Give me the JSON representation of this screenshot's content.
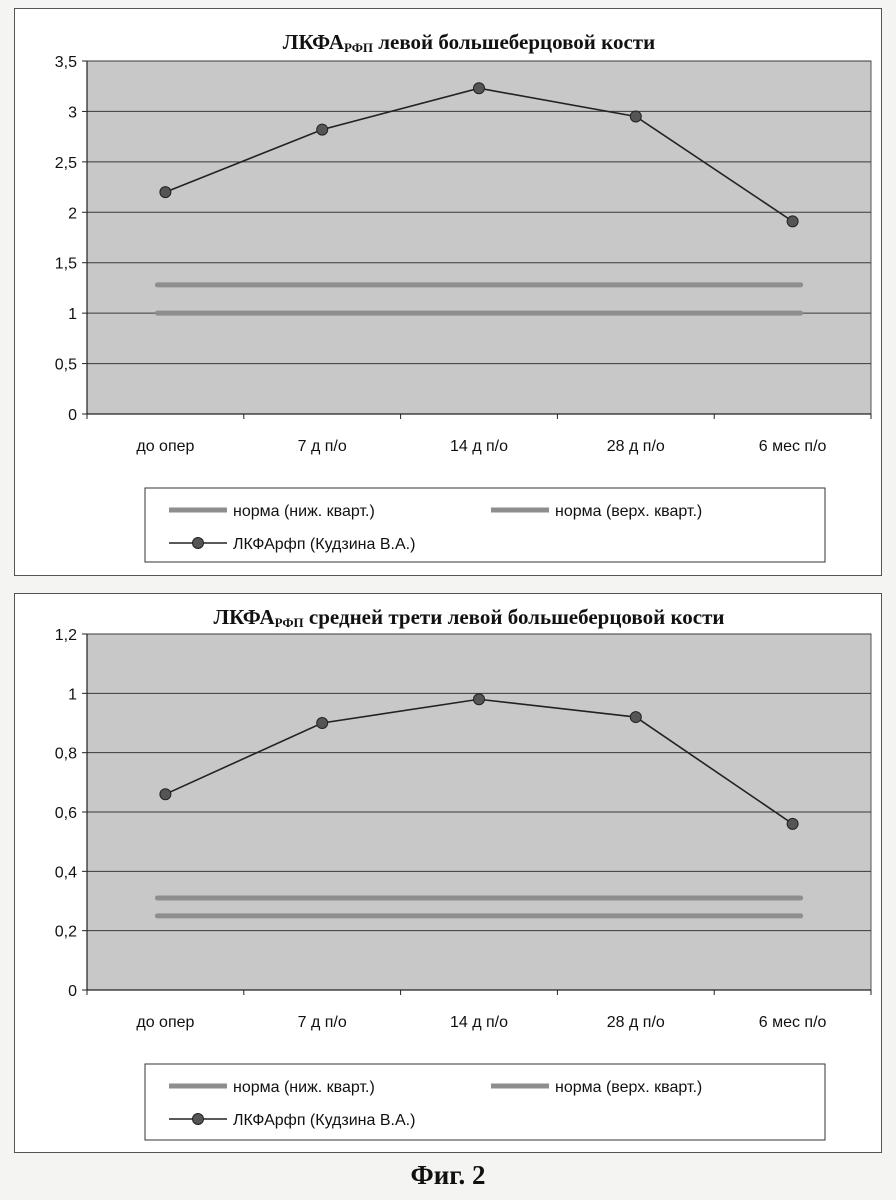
{
  "colors": {
    "plot_bg": "#c8c8c8",
    "gridline": "#3a3a3a",
    "norm_lines": "#8e8e8e",
    "series_line": "#222222",
    "marker": "#555555"
  },
  "figure_caption": "Фиг. 2",
  "chart_data": [
    {
      "type": "line",
      "title": "ЛКФА",
      "title_subscript": "РФП",
      "title_rest": "левой большеберцовой кости",
      "categories": [
        "до опер",
        "7 д п/о",
        "14 д п/о",
        "28 д п/о",
        "6 мес п/о"
      ],
      "ylim": [
        0,
        3.5
      ],
      "yticks": [
        "0",
        "0,5",
        "1",
        "1,5",
        "2",
        "2,5",
        "3",
        "3,5"
      ],
      "grid": true,
      "legend_position": "bottom",
      "series": [
        {
          "name": "норма (ниж. кварт.)",
          "style": "band",
          "values": [
            1.0,
            1.0,
            1.0,
            1.0,
            1.0
          ]
        },
        {
          "name": "норма (верх. кварт.)",
          "style": "band",
          "values": [
            1.28,
            1.28,
            1.28,
            1.28,
            1.28
          ]
        },
        {
          "name": "ЛКФАрфп (Кудзина В.А.)",
          "style": "line-marker",
          "values": [
            2.2,
            2.82,
            3.23,
            2.95,
            1.91
          ]
        }
      ]
    },
    {
      "type": "line",
      "title": "ЛКФА",
      "title_subscript": "РФП",
      "title_rest": "средней трети левой большеберцовой кости",
      "categories": [
        "до опер",
        "7 д п/о",
        "14 д п/о",
        "28 д п/о",
        "6 мес п/о"
      ],
      "ylim": [
        0,
        1.2
      ],
      "yticks": [
        "0",
        "0,2",
        "0,4",
        "0,6",
        "0,8",
        "1",
        "1,2"
      ],
      "grid": true,
      "legend_position": "bottom",
      "series": [
        {
          "name": "норма (ниж. кварт.)",
          "style": "band",
          "values": [
            0.25,
            0.25,
            0.25,
            0.25,
            0.25
          ]
        },
        {
          "name": "норма (верх. кварт.)",
          "style": "band",
          "values": [
            0.31,
            0.31,
            0.31,
            0.31,
            0.31
          ]
        },
        {
          "name": "ЛКФАрфп (Кудзина В.А.)",
          "style": "line-marker",
          "values": [
            0.66,
            0.9,
            0.98,
            0.92,
            0.56
          ]
        }
      ]
    }
  ]
}
